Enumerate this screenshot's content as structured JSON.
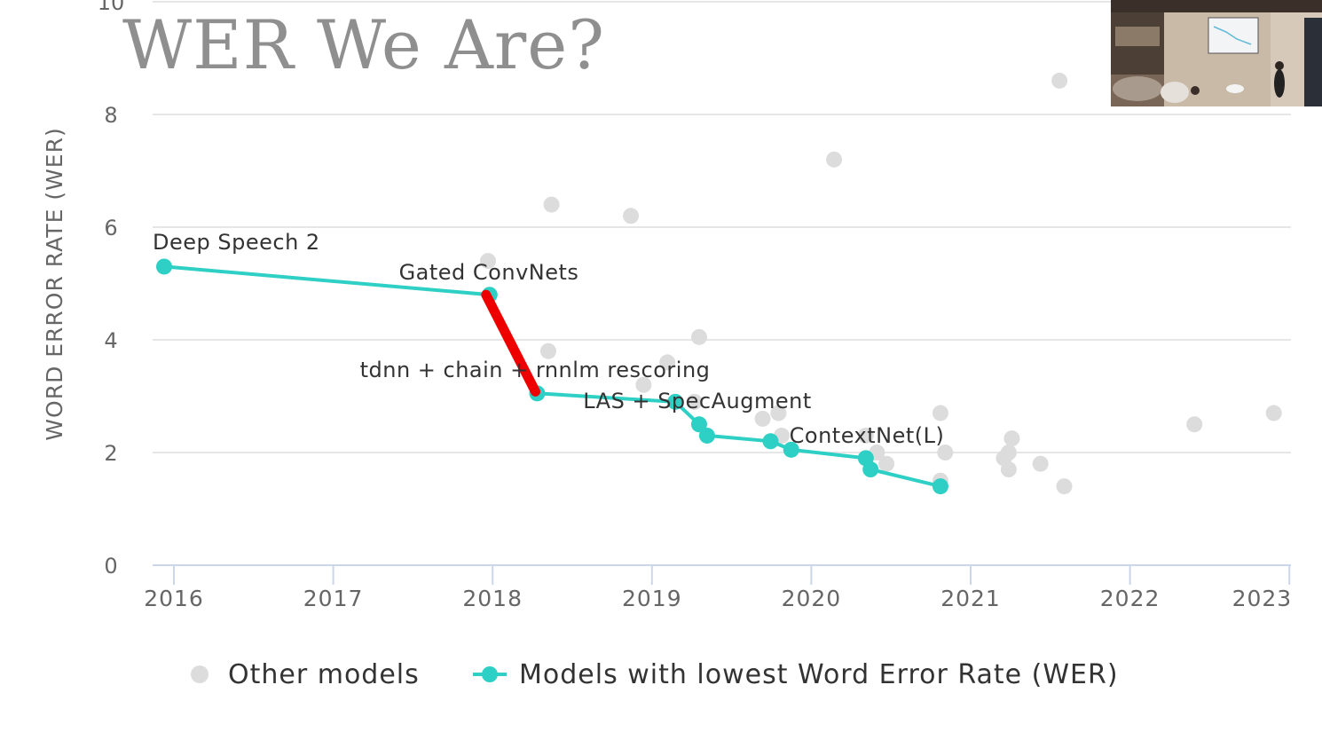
{
  "slide": {
    "title": "WER We Are?"
  },
  "chart_data": {
    "type": "scatter",
    "title": "",
    "xlabel": "",
    "ylabel": "WORD ERROR RATE (WER)",
    "xlim": [
      2015.93,
      2023.0
    ],
    "ylim": [
      0,
      10
    ],
    "x_ticks": [
      "2016",
      "2017",
      "2018",
      "2019",
      "2020",
      "2021",
      "2022",
      "2023"
    ],
    "y_ticks": [
      "0",
      "2",
      "4",
      "6",
      "8",
      "10"
    ],
    "grid": true,
    "legend_position": "bottom",
    "legend": [
      "Other models",
      "Models with lowest Word Error Rate (WER)"
    ],
    "colors": {
      "other": "#dcdcdc",
      "best": "#2ecfc4",
      "highlight": "#ee0000"
    },
    "series": [
      {
        "name": "Other models",
        "points": [
          [
            2017.97,
            5.4
          ],
          [
            2018.37,
            6.4
          ],
          [
            2018.35,
            3.8
          ],
          [
            2018.87,
            6.2
          ],
          [
            2019.1,
            3.6
          ],
          [
            2018.95,
            3.2
          ],
          [
            2019.3,
            4.05
          ],
          [
            2019.27,
            2.9
          ],
          [
            2019.7,
            2.6
          ],
          [
            2019.8,
            2.7
          ],
          [
            2019.82,
            2.3
          ],
          [
            2020.15,
            7.2
          ],
          [
            2020.35,
            2.3
          ],
          [
            2020.42,
            2.0
          ],
          [
            2020.48,
            1.8
          ],
          [
            2020.82,
            2.7
          ],
          [
            2020.85,
            2.0
          ],
          [
            2020.82,
            1.5
          ],
          [
            2021.22,
            1.9
          ],
          [
            2021.25,
            2.0
          ],
          [
            2021.27,
            2.25
          ],
          [
            2021.25,
            1.7
          ],
          [
            2021.45,
            1.8
          ],
          [
            2021.6,
            1.4
          ],
          [
            2021.57,
            8.6
          ],
          [
            2022.42,
            2.5
          ],
          [
            2022.92,
            2.7
          ]
        ]
      },
      {
        "name": "Models with lowest Word Error Rate (WER)",
        "points": [
          [
            2015.93,
            5.3
          ],
          [
            2017.98,
            4.8
          ],
          [
            2018.28,
            3.05
          ],
          [
            2019.15,
            2.9
          ],
          [
            2019.3,
            2.5
          ],
          [
            2019.35,
            2.3
          ],
          [
            2019.75,
            2.2
          ],
          [
            2019.88,
            2.05
          ],
          [
            2020.35,
            1.9
          ],
          [
            2020.38,
            1.7
          ],
          [
            2020.82,
            1.4
          ]
        ]
      }
    ],
    "annotations": [
      {
        "text": "Deep Speech 2"
      },
      {
        "text": "Gated ConvNets"
      },
      {
        "text": "tdnn + chain + rnnlm rescoring"
      },
      {
        "text": "LAS + SpecAugment"
      },
      {
        "text": "ContextNet(L)"
      }
    ]
  }
}
